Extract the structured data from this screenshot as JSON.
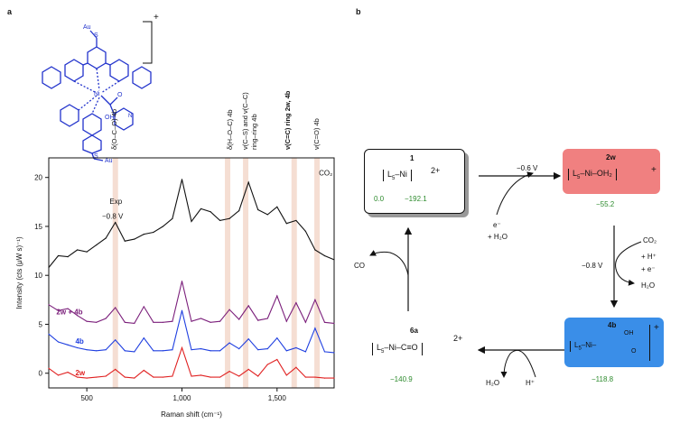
{
  "panel_a": {
    "label": "a",
    "mol_charge": "+",
    "mol_text": {
      "au_top": "Au",
      "s_top": "S",
      "ni": "Ni",
      "o": "O",
      "oh": "OH",
      "n": "N",
      "s_bottom": "S",
      "au_bottom": "Au"
    },
    "band_labels": [
      {
        "text": "δ(O–C–O) 4b",
        "color": "#e07b2a"
      },
      {
        "text": "δ(H–O–C) 4b",
        "color": "#e07b2a"
      },
      {
        "text": "ν(C–S) and ν(C–C)",
        "color": "#111111"
      },
      {
        "text": "ring–ring 4b",
        "color": "#111111"
      },
      {
        "text": "ν(C=C) ring 2w, 4b",
        "color": "#111111"
      },
      {
        "text": "ν(C=O) 4b",
        "color": "#e07b2a"
      }
    ],
    "co2": "CO₂",
    "exp_label": "Exp",
    "exp_potential": "−0.8 V",
    "trace_labels": {
      "combo": "2w + 4b",
      "t4b": "4b",
      "t2w": "2w"
    },
    "chart_data": {
      "type": "line",
      "xlabel": "Raman shift (cm⁻¹)",
      "ylabel": "Intensity (cts (μW s)⁻¹)",
      "xlim": [
        300,
        1800
      ],
      "ylim": [
        -1.5,
        22
      ],
      "xticks": [
        500,
        1000,
        1500
      ],
      "xtick_labels": [
        "500",
        "1,000",
        "1,500"
      ],
      "yticks": [
        0,
        5,
        10,
        15,
        20
      ],
      "series": [
        {
          "name": "Exp",
          "color": "#111111",
          "x": [
            300,
            350,
            400,
            450,
            500,
            550,
            600,
            650,
            700,
            750,
            800,
            850,
            900,
            950,
            1000,
            1050,
            1100,
            1150,
            1200,
            1250,
            1300,
            1350,
            1400,
            1450,
            1500,
            1550,
            1600,
            1650,
            1700,
            1750,
            1800
          ],
          "y": [
            10.8,
            12.0,
            11.9,
            12.6,
            12.4,
            13.1,
            13.8,
            15.4,
            13.5,
            13.7,
            14.2,
            14.4,
            15.0,
            15.8,
            19.8,
            15.5,
            16.8,
            16.5,
            15.6,
            15.8,
            16.6,
            19.5,
            16.7,
            16.2,
            17.0,
            15.3,
            15.6,
            14.5,
            12.6,
            12.0,
            11.6
          ]
        },
        {
          "name": "2w + 4b",
          "color": "#7b1f7b",
          "x": [
            300,
            350,
            400,
            450,
            500,
            550,
            600,
            650,
            700,
            750,
            800,
            850,
            900,
            950,
            1000,
            1050,
            1100,
            1150,
            1200,
            1250,
            1300,
            1350,
            1400,
            1450,
            1500,
            1550,
            1600,
            1650,
            1700,
            1750,
            1800
          ],
          "y": [
            7.0,
            6.4,
            6.6,
            5.9,
            5.3,
            5.2,
            5.6,
            6.7,
            5.2,
            5.1,
            6.8,
            5.2,
            5.2,
            5.3,
            9.4,
            5.3,
            5.6,
            5.2,
            5.3,
            6.5,
            5.5,
            6.9,
            5.4,
            5.6,
            7.9,
            5.3,
            7.2,
            5.2,
            7.5,
            5.2,
            5.1
          ]
        },
        {
          "name": "4b",
          "color": "#1f3fe0",
          "x": [
            300,
            350,
            400,
            450,
            500,
            550,
            600,
            650,
            700,
            750,
            800,
            850,
            900,
            950,
            1000,
            1050,
            1100,
            1150,
            1200,
            1250,
            1300,
            1350,
            1400,
            1450,
            1500,
            1550,
            1600,
            1650,
            1700,
            1750,
            1800
          ],
          "y": [
            4.0,
            3.2,
            2.9,
            2.6,
            2.4,
            2.3,
            2.4,
            3.4,
            2.3,
            2.2,
            3.6,
            2.3,
            2.3,
            2.4,
            6.4,
            2.4,
            2.5,
            2.3,
            2.3,
            3.1,
            2.5,
            3.5,
            2.4,
            2.5,
            3.6,
            2.3,
            2.6,
            2.2,
            4.6,
            2.2,
            2.1
          ]
        },
        {
          "name": "2w",
          "color": "#e02020",
          "x": [
            300,
            350,
            400,
            450,
            500,
            550,
            600,
            650,
            700,
            750,
            800,
            850,
            900,
            950,
            1000,
            1050,
            1100,
            1150,
            1200,
            1250,
            1300,
            1350,
            1400,
            1450,
            1500,
            1550,
            1600,
            1650,
            1700,
            1750,
            1800
          ],
          "y": [
            0.5,
            -0.2,
            0.1,
            -0.4,
            -0.5,
            -0.4,
            -0.3,
            0.4,
            -0.4,
            -0.5,
            0.3,
            -0.4,
            -0.4,
            -0.3,
            2.6,
            -0.3,
            -0.2,
            -0.4,
            -0.4,
            0.2,
            -0.3,
            0.4,
            -0.3,
            0.9,
            1.4,
            -0.2,
            0.6,
            -0.4,
            -0.4,
            -0.5,
            -0.5
          ]
        }
      ],
      "band_positions_cm": [
        650,
        1240,
        1335,
        1590,
        1710
      ]
    }
  },
  "panel_b": {
    "label": "b",
    "species_1": {
      "id": "1",
      "formula_left": "L",
      "formula_sub": "5",
      "formula_rest": "–Ni",
      "charge": "2+",
      "value_a": "0.0",
      "value_b": "−192.1"
    },
    "species_2w": {
      "id": "2w",
      "formula_left": "L",
      "formula_sub": "5",
      "formula_rest": "–Ni–OH₂",
      "charge": "+",
      "value": "−55.2",
      "color": "#f08080"
    },
    "species_4b": {
      "id": "4b",
      "formula_left": "L",
      "formula_sub": "5",
      "formula_rest": "–Ni–",
      "o": "O",
      "oh": "OH",
      "charge": "+",
      "value": "−118.8",
      "color": "#3a8ee8"
    },
    "species_6a": {
      "id": "6a",
      "formula_left": "L",
      "formula_sub": "5",
      "formula_rest": "–Ni–C≡O",
      "charge": "2+",
      "value": "−140.9"
    },
    "step_top": {
      "potential": "−0.6 V",
      "reagent_e": "e⁻",
      "reagent_h2o": "+ H₂O"
    },
    "step_right": {
      "potential": "−0.8 V",
      "co2": "CO₂",
      "h": "+ H⁺",
      "e": "+ e⁻",
      "h2o": "H₂O"
    },
    "step_bottom": {
      "h2o": "H₂O",
      "h": "H⁺"
    },
    "step_left": {
      "co": "CO"
    }
  }
}
